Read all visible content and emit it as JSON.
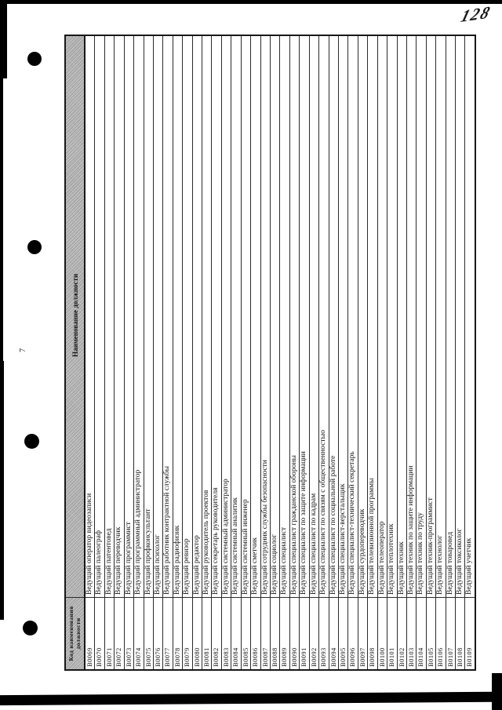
{
  "page": {
    "handwritten_page_number": "128",
    "margin_mark": "7"
  },
  "colors": {
    "paper": "#ffffff",
    "ink": "#111111",
    "table_line": "#2b2b2b",
    "header_bg": "#b6b6b6",
    "scan_edge": "#000000"
  },
  "table": {
    "headers": {
      "code": "Код наименования должности",
      "title": "Наименование должности"
    },
    "rows": [
      {
        "code": "B0069",
        "title": "Ведущий оператор видеозаписи"
      },
      {
        "code": "B0070",
        "title": "Ведущий палеограф"
      },
      {
        "code": "B0071",
        "title": "Ведущий патентовед"
      },
      {
        "code": "B0072",
        "title": "Ведущий переводчик"
      },
      {
        "code": "B0073",
        "title": "Ведущий программист"
      },
      {
        "code": "B0074",
        "title": "Ведущий программный администратор"
      },
      {
        "code": "B0075",
        "title": "Ведущий профконсультант"
      },
      {
        "code": "B0076",
        "title": "Ведущий психолог"
      },
      {
        "code": "B0077",
        "title": "Ведущий работник контрактной службы"
      },
      {
        "code": "B0078",
        "title": "Ведущий радиофизик"
      },
      {
        "code": "B0079",
        "title": "Ведущий ревизор"
      },
      {
        "code": "B0080",
        "title": "Ведущий редактор"
      },
      {
        "code": "B0081",
        "title": "Ведущий руководитель проектов"
      },
      {
        "code": "B0082",
        "title": "Ведущий секретарь руководителя"
      },
      {
        "code": "B0083",
        "title": "Ведущий системный администратор"
      },
      {
        "code": "B0084",
        "title": "Ведущий системный аналитик"
      },
      {
        "code": "B0085",
        "title": "Ведущий системный инженер"
      },
      {
        "code": "B0086",
        "title": "Ведущий сметчик"
      },
      {
        "code": "B0087",
        "title": "Ведущий сотрудник службы безопасности"
      },
      {
        "code": "B0088",
        "title": "Ведущий социолог"
      },
      {
        "code": "B0089",
        "title": "Ведущий специалист"
      },
      {
        "code": "B0090",
        "title": "Ведущий специалист гражданской обороны"
      },
      {
        "code": "B0091",
        "title": "Ведущий специалист по защите информации"
      },
      {
        "code": "B0092",
        "title": "Ведущий специалист по кадрам"
      },
      {
        "code": "B0093",
        "title": "Ведущий специалист по связям с общественностью"
      },
      {
        "code": "B0094",
        "title": "Ведущий специалист по социальной работе"
      },
      {
        "code": "B0095",
        "title": "Ведущий специалист-верстальщик"
      },
      {
        "code": "B0096",
        "title": "Ведущий специалист-технический секретарь"
      },
      {
        "code": "B0097",
        "title": "Ведущий сурдопереводчик"
      },
      {
        "code": "B0098",
        "title": "Ведущий телевизионной программы"
      },
      {
        "code": "B0100",
        "title": "Ведущий телеоператор"
      },
      {
        "code": "B0101",
        "title": "Ведущий теплотехник"
      },
      {
        "code": "B0102",
        "title": "Ведущий техник"
      },
      {
        "code": "B0103",
        "title": "Ведущий техник по защите информации"
      },
      {
        "code": "B0104",
        "title": "Ведущий техник по труду"
      },
      {
        "code": "B0105",
        "title": "Ведущий техник-программист"
      },
      {
        "code": "B0106",
        "title": "Ведущий технолог"
      },
      {
        "code": "B0107",
        "title": "Ведущий товаровед"
      },
      {
        "code": "B0108",
        "title": "Ведущий токсиколог"
      },
      {
        "code": "B0109",
        "title": "Ведущий учетчик"
      }
    ]
  }
}
